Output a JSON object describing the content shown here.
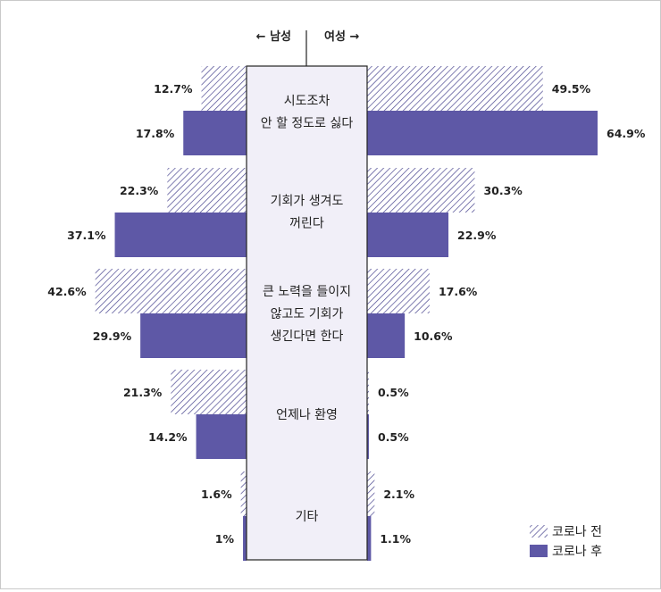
{
  "chart_data": {
    "type": "bar",
    "orientation": "horizontal-butterfly",
    "left_header": "← 남성",
    "right_header": "여성 →",
    "categories": [
      {
        "lines": [
          "시도조차",
          "안 할 정도로 싫다"
        ]
      },
      {
        "lines": [
          "기회가 생겨도",
          "꺼린다"
        ]
      },
      {
        "lines": [
          "큰 노력을 들이지",
          "않고도 기회가",
          "생긴다면 한다"
        ]
      },
      {
        "lines": [
          "언제나 환영"
        ]
      },
      {
        "lines": [
          "기타"
        ]
      }
    ],
    "series": [
      {
        "name": "코로나 전",
        "pattern": "hatched",
        "male": [
          12.7,
          22.3,
          42.6,
          21.3,
          1.6
        ],
        "female": [
          49.5,
          30.3,
          17.6,
          0.5,
          2.1
        ],
        "male_labels": [
          "12.7%",
          "22.3%",
          "42.6%",
          "21.3%",
          "1.6%"
        ],
        "female_labels": [
          "49.5%",
          "30.3%",
          "17.6%",
          "0.5%",
          "2.1%"
        ]
      },
      {
        "name": "코로나 후",
        "pattern": "solid",
        "male": [
          17.8,
          37.1,
          29.9,
          14.2,
          1
        ],
        "female": [
          64.9,
          22.9,
          10.6,
          0.5,
          1.1
        ],
        "male_labels": [
          "17.8%",
          "37.1%",
          "29.9%",
          "14.2%",
          "1%"
        ],
        "female_labels": [
          "64.9%",
          "22.9%",
          "10.6%",
          "0.5%",
          "1.1%"
        ]
      }
    ],
    "colors": {
      "after": "#5e58a6",
      "hatch": "#4a4690",
      "center_box": "#f1eff8"
    },
    "legend_position": "bottom-right"
  }
}
